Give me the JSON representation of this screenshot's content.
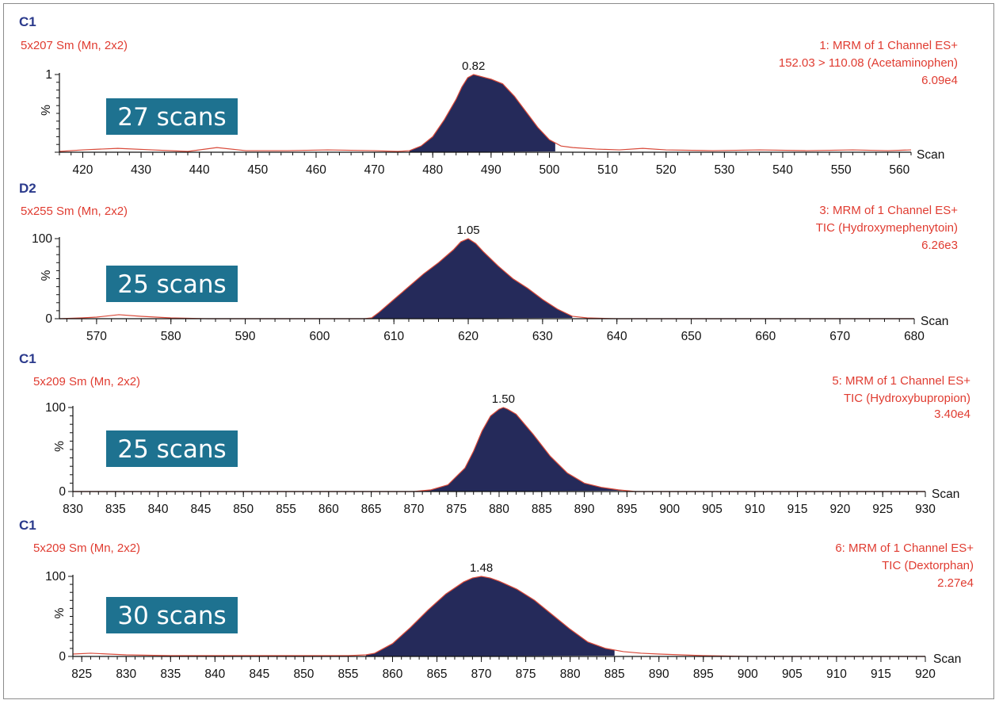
{
  "colors": {
    "trace": "#d94a3a",
    "fill": "#252a5a",
    "badge": "#1e7290",
    "title": "#2b3a8c",
    "red_text": "#e03c31"
  },
  "chart_data": [
    {
      "type": "area",
      "panel_id": "C1",
      "smoothing": "5x207 Sm (Mn, 2x2)",
      "function": "1: MRM of 1 Channel ES+",
      "transition": "152.03 > 110.08 (Acetaminophen)",
      "intensity": "6.09e4",
      "badge": "27 scans",
      "xlabel": "Scan",
      "ylabel": "%",
      "y_ticks": [
        "",
        "1"
      ],
      "x_ticks": [
        "420",
        "430",
        "440",
        "450",
        "460",
        "470",
        "480",
        "490",
        "500",
        "510",
        "520",
        "530",
        "540",
        "550",
        "560"
      ],
      "xlim": [
        416,
        562
      ],
      "peak": {
        "label": "0.82",
        "apex": 487,
        "start": 476,
        "end": 501
      },
      "series": {
        "x": [
          416,
          420,
          426,
          432,
          438,
          443,
          448,
          455,
          462,
          470,
          474,
          476,
          478,
          480,
          482,
          484,
          485,
          486,
          487,
          488,
          489,
          490,
          492,
          494,
          496,
          498,
          500,
          502,
          504,
          508,
          512,
          516,
          520,
          528,
          536,
          544,
          552,
          558,
          562
        ],
        "y": [
          1,
          3,
          5,
          3,
          1,
          6,
          2,
          2,
          3,
          2,
          1,
          2,
          8,
          20,
          42,
          68,
          84,
          96,
          100,
          98,
          96,
          94,
          88,
          72,
          52,
          32,
          16,
          8,
          6,
          4,
          3,
          5,
          3,
          2,
          3,
          2,
          3,
          2,
          3
        ]
      }
    },
    {
      "type": "area",
      "panel_id": "D2",
      "smoothing": "5x255 Sm (Mn, 2x2)",
      "function": "3: MRM of 1 Channel ES+",
      "transition": "TIC (Hydroxymephenytoin)",
      "intensity": "6.26e3",
      "badge": "25 scans",
      "xlabel": "Scan",
      "ylabel": "%",
      "y_ticks": [
        "0",
        "100"
      ],
      "x_ticks": [
        "570",
        "580",
        "590",
        "600",
        "610",
        "620",
        "630",
        "640",
        "650",
        "660",
        "670",
        "680"
      ],
      "xlim": [
        565,
        680
      ],
      "peak": {
        "label": "1.05",
        "apex": 620,
        "start": 607,
        "end": 634
      },
      "series": {
        "x": [
          565,
          568,
          570,
          573,
          576,
          580,
          585,
          590,
          595,
          600,
          604,
          606,
          607,
          608,
          610,
          612,
          614,
          616,
          618,
          619,
          620,
          621,
          622,
          624,
          626,
          628,
          630,
          632,
          634,
          636,
          640,
          650,
          660,
          670,
          680
        ],
        "y": [
          0,
          1,
          2,
          5,
          3,
          1,
          0,
          0,
          0,
          0,
          0,
          0,
          1,
          8,
          24,
          40,
          56,
          70,
          86,
          96,
          100,
          94,
          84,
          66,
          50,
          38,
          24,
          12,
          3,
          1,
          0,
          0,
          0,
          0,
          0
        ]
      }
    },
    {
      "type": "area",
      "panel_id": "C1",
      "smoothing": "5x209 Sm (Mn, 2x2)",
      "function": "5: MRM of 1 Channel ES+",
      "transition": "TIC (Hydroxybupropion)",
      "intensity": "3.40e4",
      "badge": "25 scans",
      "xlabel": "Scan",
      "ylabel": "%",
      "y_ticks": [
        "0",
        "100"
      ],
      "x_ticks": [
        "830",
        "835",
        "840",
        "845",
        "850",
        "855",
        "860",
        "865",
        "870",
        "875",
        "880",
        "885",
        "890",
        "895",
        "900",
        "905",
        "910",
        "915",
        "920",
        "925",
        "930"
      ],
      "xlim": [
        830,
        930
      ],
      "peak": {
        "label": "1.50",
        "apex": 880.5,
        "start": 871,
        "end": 895
      },
      "series": {
        "x": [
          830,
          850,
          868,
          870,
          872,
          874,
          876,
          877,
          878,
          879,
          880,
          880.5,
          881,
          882,
          884,
          886,
          888,
          890,
          892,
          894,
          896,
          900,
          930
        ],
        "y": [
          0,
          0,
          0,
          0,
          2,
          8,
          28,
          48,
          72,
          90,
          98,
          100,
          98,
          92,
          68,
          42,
          22,
          10,
          5,
          2,
          0,
          0,
          0
        ]
      }
    },
    {
      "type": "area",
      "panel_id": "C1",
      "smoothing": "5x209 Sm (Mn, 2x2)",
      "function": "6: MRM of 1 Channel ES+",
      "transition": "TIC (Dextorphan)",
      "intensity": "2.27e4",
      "badge": "30 scans",
      "xlabel": "Scan",
      "ylabel": "%",
      "y_ticks": [
        "0",
        "100"
      ],
      "x_ticks": [
        "825",
        "830",
        "835",
        "840",
        "845",
        "850",
        "855",
        "860",
        "865",
        "870",
        "875",
        "880",
        "885",
        "890",
        "895",
        "900",
        "905",
        "910",
        "915",
        "920"
      ],
      "xlim": [
        824,
        920
      ],
      "peak": {
        "label": "1.48",
        "apex": 870,
        "start": 857,
        "end": 885
      },
      "series": {
        "x": [
          824,
          826,
          828,
          830,
          835,
          840,
          845,
          850,
          855,
          857,
          858,
          860,
          862,
          864,
          866,
          868,
          869,
          870,
          871,
          872,
          874,
          876,
          878,
          880,
          882,
          884,
          886,
          888,
          890,
          895,
          900,
          920
        ],
        "y": [
          3,
          4,
          3,
          2,
          1,
          1,
          1,
          1,
          1,
          2,
          4,
          16,
          36,
          58,
          78,
          93,
          98,
          100,
          98,
          94,
          84,
          70,
          52,
          34,
          18,
          10,
          6,
          4,
          3,
          1,
          0,
          0
        ]
      }
    }
  ]
}
